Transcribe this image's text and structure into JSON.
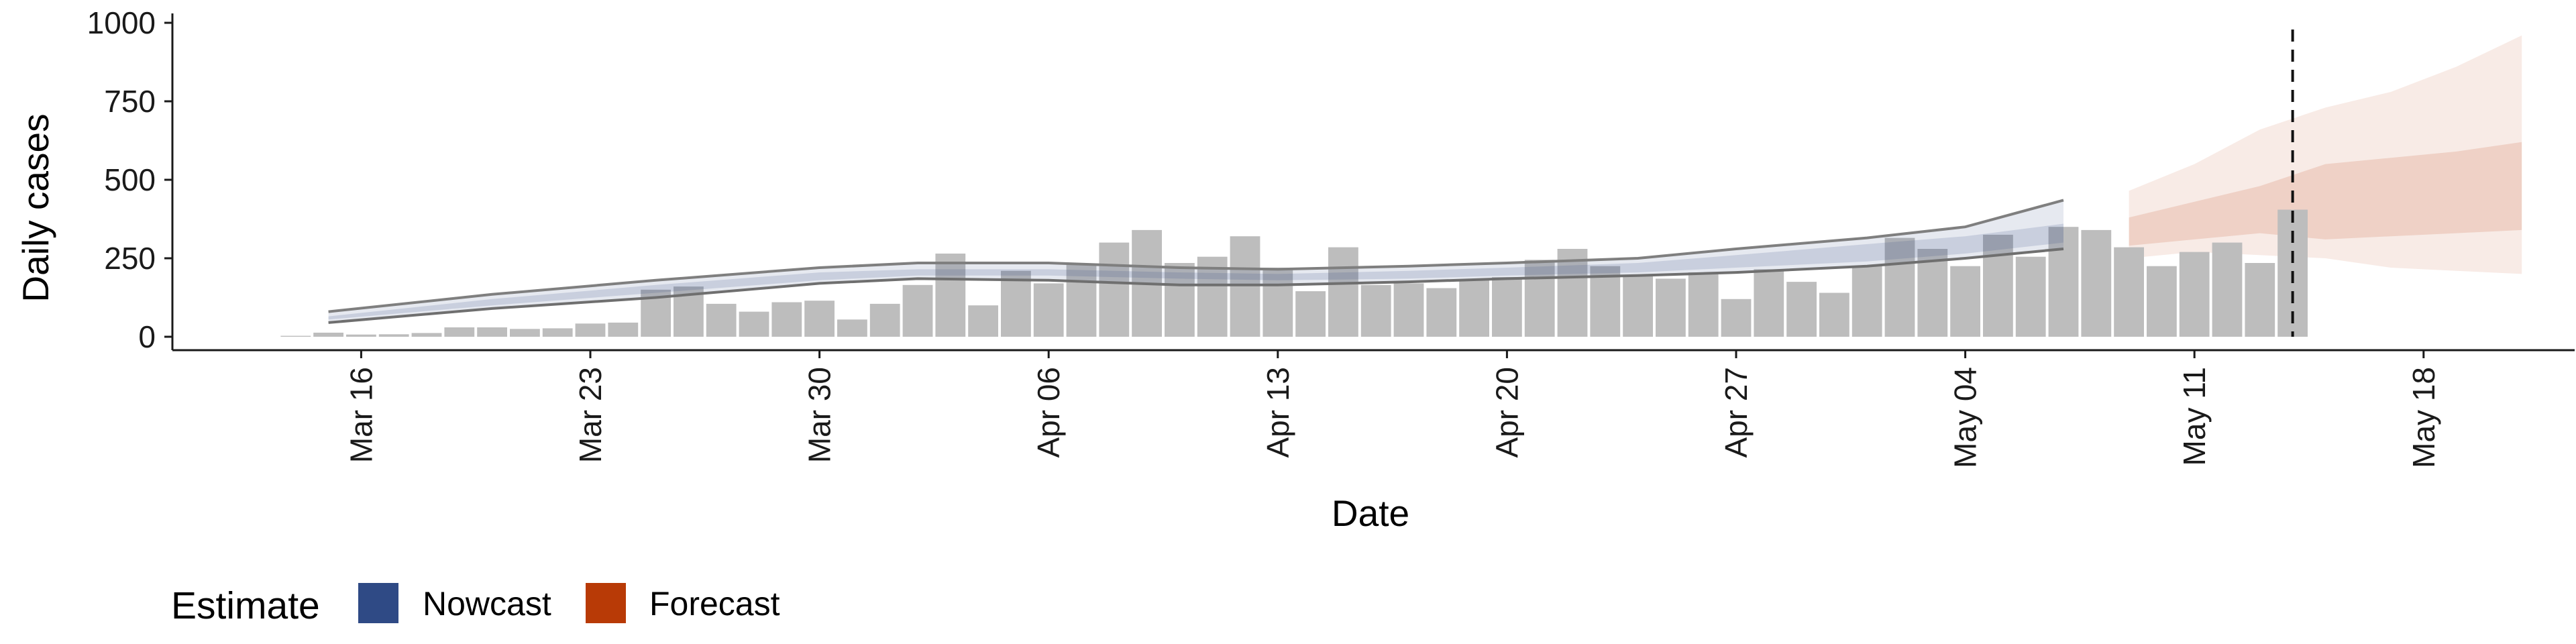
{
  "chart_data": {
    "type": "bar",
    "xlabel": "Date",
    "ylabel": "Daily cases",
    "ylim": [
      0,
      1000
    ],
    "yticks": [
      0,
      250,
      500,
      750,
      1000
    ],
    "x_range": [
      "2020-03-11",
      "2020-05-24"
    ],
    "x_tick_labels": [
      {
        "date": "2020-03-16",
        "label": "Mar 16"
      },
      {
        "date": "2020-03-23",
        "label": "Mar 23"
      },
      {
        "date": "2020-03-30",
        "label": "Mar 30"
      },
      {
        "date": "2020-04-06",
        "label": "Apr 06"
      },
      {
        "date": "2020-04-13",
        "label": "Apr 13"
      },
      {
        "date": "2020-04-20",
        "label": "Apr 20"
      },
      {
        "date": "2020-04-27",
        "label": "Apr 27"
      },
      {
        "date": "2020-05-04",
        "label": "May 04"
      },
      {
        "date": "2020-05-11",
        "label": "May 11"
      },
      {
        "date": "2020-05-18",
        "label": "May 18"
      }
    ],
    "grid": false,
    "legend": {
      "position": "bottom-left",
      "title": "Estimate",
      "items": [
        {
          "label": "Nowcast",
          "color": "#2f4a85"
        },
        {
          "label": "Forecast",
          "color": "#b83a06"
        }
      ]
    },
    "reported_cases": {
      "color": "#bdbdbd",
      "dates": [
        "2020-03-14",
        "2020-03-15",
        "2020-03-16",
        "2020-03-17",
        "2020-03-18",
        "2020-03-19",
        "2020-03-20",
        "2020-03-21",
        "2020-03-22",
        "2020-03-23",
        "2020-03-24",
        "2020-03-25",
        "2020-03-26",
        "2020-03-27",
        "2020-03-28",
        "2020-03-29",
        "2020-03-30",
        "2020-03-31",
        "2020-04-01",
        "2020-04-02",
        "2020-04-03",
        "2020-04-04",
        "2020-04-05",
        "2020-04-06",
        "2020-04-07",
        "2020-04-08",
        "2020-04-09",
        "2020-04-10",
        "2020-04-11",
        "2020-04-12",
        "2020-04-13",
        "2020-04-14",
        "2020-04-15",
        "2020-04-16",
        "2020-04-17",
        "2020-04-18",
        "2020-04-19",
        "2020-04-20",
        "2020-04-21",
        "2020-04-22",
        "2020-04-23",
        "2020-04-24",
        "2020-04-25",
        "2020-04-26",
        "2020-04-27",
        "2020-04-28",
        "2020-04-29",
        "2020-04-30",
        "2020-05-01",
        "2020-05-02",
        "2020-05-03",
        "2020-05-04",
        "2020-05-05",
        "2020-05-06",
        "2020-05-07",
        "2020-05-08",
        "2020-05-09",
        "2020-05-10",
        "2020-05-11",
        "2020-05-12",
        "2020-05-13",
        "2020-05-14"
      ],
      "values": [
        3,
        13,
        7,
        8,
        12,
        30,
        30,
        25,
        27,
        42,
        45,
        150,
        160,
        105,
        80,
        110,
        115,
        55,
        105,
        165,
        265,
        100,
        210,
        170,
        230,
        300,
        340,
        235,
        255,
        320,
        220,
        145,
        285,
        165,
        170,
        155,
        180,
        190,
        245,
        280,
        225,
        195,
        185,
        205,
        120,
        215,
        175,
        140,
        225,
        315,
        280,
        225,
        325,
        255,
        350,
        340,
        285,
        225,
        270,
        300,
        235,
        405
      ]
    },
    "nowcast": {
      "color": "#2f4a85",
      "dates": [
        "2020-03-15",
        "2020-03-20",
        "2020-03-25",
        "2020-03-30",
        "2020-04-02",
        "2020-04-06",
        "2020-04-10",
        "2020-04-13",
        "2020-04-17",
        "2020-04-20",
        "2020-04-24",
        "2020-04-27",
        "2020-05-01",
        "2020-05-04",
        "2020-05-07"
      ],
      "upper90": [
        80,
        135,
        180,
        220,
        235,
        235,
        220,
        215,
        225,
        235,
        250,
        280,
        315,
        350,
        435
      ],
      "upper50": [
        65,
        120,
        165,
        205,
        215,
        215,
        205,
        200,
        210,
        220,
        235,
        260,
        295,
        320,
        360
      ],
      "median": [
        60,
        110,
        150,
        190,
        205,
        205,
        195,
        190,
        195,
        205,
        215,
        240,
        270,
        295,
        330
      ],
      "lower50": [
        55,
        100,
        140,
        180,
        195,
        195,
        185,
        180,
        185,
        195,
        205,
        220,
        240,
        265,
        300
      ],
      "lower90": [
        45,
        90,
        125,
        170,
        185,
        180,
        165,
        165,
        175,
        185,
        195,
        205,
        225,
        250,
        280
      ]
    },
    "forecast": {
      "color": "#b83a06",
      "dates": [
        "2020-05-09",
        "2020-05-11",
        "2020-05-13",
        "2020-05-15",
        "2020-05-17",
        "2020-05-19",
        "2020-05-21"
      ],
      "upper90": [
        465,
        550,
        660,
        730,
        780,
        860,
        960
      ],
      "upper50": [
        380,
        430,
        480,
        550,
        570,
        590,
        620
      ],
      "lower50": [
        290,
        310,
        330,
        310,
        320,
        330,
        340
      ],
      "lower90": [
        250,
        270,
        260,
        250,
        220,
        210,
        200
      ]
    },
    "forecast_start_date": "2020-05-14"
  }
}
